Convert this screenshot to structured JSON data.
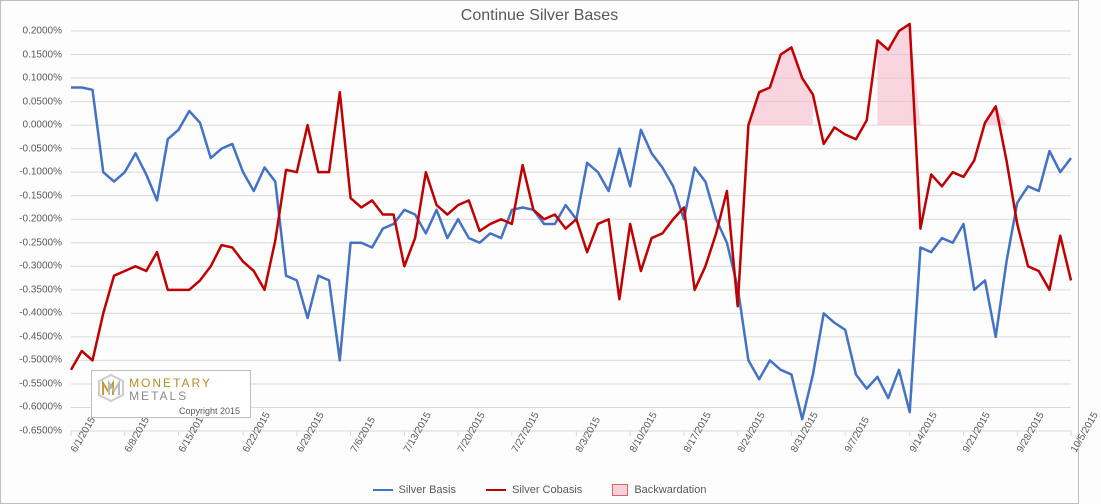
{
  "chart": {
    "title": "Continue Silver Bases",
    "title_fontsize": 16,
    "title_color": "#595959",
    "background_color": "#fdfdfd",
    "border_color": "#bfbfbf",
    "grid_color": "#d9d9d9",
    "y_axis": {
      "min": -0.65,
      "max": 0.2,
      "step": 0.05,
      "labels": [
        "-0.6500%",
        "-0.6000%",
        "-0.5500%",
        "-0.5000%",
        "-0.4500%",
        "-0.4000%",
        "-0.3500%",
        "-0.3000%",
        "-0.2500%",
        "-0.2000%",
        "-0.1500%",
        "-0.1000%",
        "-0.0500%",
        "0.0000%",
        "0.0500%",
        "0.1000%",
        "0.1500%",
        "0.2000%"
      ],
      "label_fontsize": 10,
      "label_color": "#595959"
    },
    "x_axis": {
      "labels": [
        "6/1/2015",
        "6/8/2015",
        "6/15/2015",
        "6/22/2015",
        "6/29/2015",
        "7/6/2015",
        "7/13/2015",
        "7/20/2015",
        "7/27/2015",
        "8/3/2015",
        "8/10/2015",
        "8/17/2015",
        "8/24/2015",
        "8/31/2015",
        "9/7/2015",
        "9/14/2015",
        "9/21/2015",
        "9/28/2015",
        "10/5/2015"
      ],
      "label_fontsize": 10,
      "label_color": "#595959",
      "label_rotation": -60
    },
    "series": {
      "basis": {
        "name": "Silver Basis",
        "color": "#4472c4",
        "line_width": 2.5,
        "data": [
          0.08,
          0.08,
          0.075,
          -0.1,
          -0.12,
          -0.1,
          -0.06,
          -0.105,
          -0.16,
          -0.03,
          -0.01,
          0.03,
          0.005,
          -0.07,
          -0.05,
          -0.04,
          -0.1,
          -0.14,
          -0.09,
          -0.12,
          -0.32,
          -0.33,
          -0.41,
          -0.32,
          -0.33,
          -0.5,
          -0.25,
          -0.25,
          -0.26,
          -0.22,
          -0.21,
          -0.18,
          -0.19,
          -0.23,
          -0.18,
          -0.24,
          -0.2,
          -0.24,
          -0.25,
          -0.23,
          -0.24,
          -0.18,
          -0.175,
          -0.18,
          -0.21,
          -0.21,
          -0.17,
          -0.2,
          -0.08,
          -0.1,
          -0.14,
          -0.05,
          -0.13,
          -0.01,
          -0.06,
          -0.09,
          -0.13,
          -0.2,
          -0.09,
          -0.12,
          -0.2,
          -0.25,
          -0.345,
          -0.5,
          -0.54,
          -0.5,
          -0.52,
          -0.53,
          -0.625,
          -0.53,
          -0.4,
          -0.42,
          -0.435,
          -0.53,
          -0.56,
          -0.535,
          -0.58,
          -0.52,
          -0.61,
          -0.26,
          -0.27,
          -0.24,
          -0.25,
          -0.21,
          -0.35,
          -0.33,
          -0.45,
          -0.29,
          -0.165,
          -0.13,
          -0.14,
          -0.055,
          -0.1,
          -0.07
        ]
      },
      "cobasis": {
        "name": "Silver Cobasis",
        "color": "#c00000",
        "line_width": 2.5,
        "data": [
          -0.52,
          -0.48,
          -0.5,
          -0.4,
          -0.32,
          -0.31,
          -0.3,
          -0.31,
          -0.27,
          -0.35,
          -0.35,
          -0.35,
          -0.33,
          -0.3,
          -0.255,
          -0.26,
          -0.29,
          -0.31,
          -0.35,
          -0.245,
          -0.095,
          -0.1,
          0.0,
          -0.1,
          -0.1,
          0.07,
          -0.155,
          -0.175,
          -0.16,
          -0.19,
          -0.19,
          -0.3,
          -0.24,
          -0.1,
          -0.17,
          -0.19,
          -0.17,
          -0.16,
          -0.225,
          -0.21,
          -0.2,
          -0.21,
          -0.085,
          -0.18,
          -0.2,
          -0.19,
          -0.22,
          -0.2,
          -0.27,
          -0.21,
          -0.2,
          -0.37,
          -0.21,
          -0.31,
          -0.24,
          -0.23,
          -0.2,
          -0.175,
          -0.35,
          -0.3,
          -0.23,
          -0.14,
          -0.385,
          0.0,
          0.07,
          0.08,
          0.15,
          0.165,
          0.1,
          0.065,
          -0.04,
          -0.005,
          -0.02,
          -0.03,
          0.01,
          0.18,
          0.16,
          0.2,
          0.215,
          -0.22,
          -0.105,
          -0.13,
          -0.1,
          -0.11,
          -0.075,
          0.005,
          0.04,
          -0.075,
          -0.21,
          -0.3,
          -0.31,
          -0.35,
          -0.235,
          -0.33
        ]
      }
    },
    "backwardation": {
      "name": "Backwardation",
      "fill_color": "#f4b4c6",
      "fill_opacity": 0.55,
      "border_color": "#c00000",
      "regions": [
        {
          "start_idx": 63,
          "end_idx": 69
        },
        {
          "start_idx": 75,
          "end_idx": 79
        },
        {
          "start_idx": 85,
          "end_idx": 87
        }
      ]
    },
    "legend": {
      "items": [
        "Silver Basis",
        "Silver Cobasis",
        "Backwardation"
      ],
      "fontsize": 11,
      "color": "#595959"
    },
    "logo": {
      "line1": "MONETARY",
      "line2": "METALS",
      "copyright": "Copyright 2015",
      "gold_color": "#b58b2a",
      "grey_color": "#8a8a8a"
    }
  }
}
